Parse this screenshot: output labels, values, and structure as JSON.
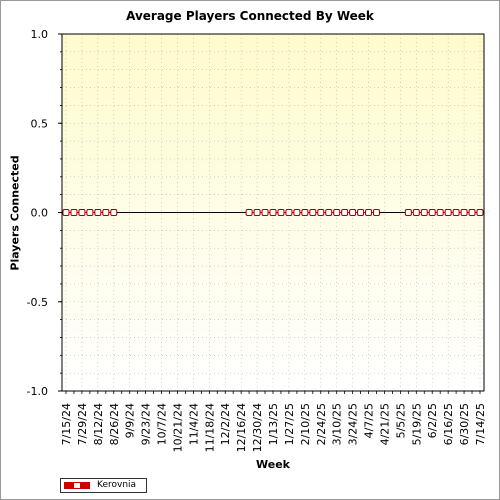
{
  "chart_data": {
    "type": "line",
    "title": "Average Players Connected By Week",
    "xlabel": "Week",
    "ylabel": "Players Connected",
    "ylim": [
      -1.0,
      1.0
    ],
    "yticks": [
      "1.0",
      "0.5",
      "0.0",
      "-0.5",
      "-1.0"
    ],
    "grid": true,
    "legend_position": "bottom-left",
    "categories": [
      "7/15/24",
      "7/22/24",
      "7/29/24",
      "8/5/24",
      "8/12/24",
      "8/19/24",
      "8/26/24",
      "9/2/24",
      "9/9/24",
      "9/16/24",
      "9/23/24",
      "9/30/24",
      "10/7/24",
      "10/14/24",
      "10/21/24",
      "10/28/24",
      "11/4/24",
      "11/11/24",
      "11/18/24",
      "11/25/24",
      "12/2/24",
      "12/9/24",
      "12/16/24",
      "12/23/24",
      "12/30/24",
      "1/6/25",
      "1/13/25",
      "1/20/25",
      "1/27/25",
      "2/3/25",
      "2/10/25",
      "2/17/25",
      "2/24/25",
      "3/3/25",
      "3/10/25",
      "3/17/25",
      "3/24/25",
      "3/31/25",
      "4/7/25",
      "4/14/25",
      "4/21/25",
      "4/28/25",
      "5/5/25",
      "5/12/25",
      "5/19/25",
      "5/26/25",
      "6/2/25",
      "6/9/25",
      "6/16/25",
      "6/23/25",
      "6/30/25",
      "7/7/25",
      "7/14/25"
    ],
    "tick_labels": [
      "7/15/24",
      "7/29/24",
      "8/12/24",
      "8/26/24",
      "9/9/24",
      "9/23/24",
      "10/7/24",
      "10/21/24",
      "11/4/24",
      "11/18/24",
      "12/2/24",
      "12/16/24",
      "12/30/24",
      "1/13/25",
      "1/27/25",
      "2/10/25",
      "2/24/25",
      "3/10/25",
      "3/24/25",
      "4/7/25",
      "4/21/25",
      "5/5/25",
      "5/19/25",
      "6/2/25",
      "6/16/25",
      "6/30/25",
      "7/14/25"
    ],
    "series": [
      {
        "name": "Kerovnia",
        "color": "#cc0000",
        "values": [
          0,
          0,
          0,
          0,
          0,
          0,
          0,
          null,
          null,
          null,
          null,
          null,
          null,
          null,
          null,
          null,
          null,
          null,
          null,
          null,
          null,
          null,
          null,
          0,
          0,
          0,
          0,
          0,
          0,
          0,
          0,
          0,
          0,
          0,
          0,
          0,
          0,
          0,
          0,
          0,
          null,
          null,
          null,
          0,
          0,
          0,
          0,
          0,
          0,
          0,
          0,
          0,
          0
        ]
      }
    ],
    "colors": {
      "background_top": "#fffbcc",
      "background_bottom": "#ffffff",
      "zero_line": "#000000",
      "marker_edge": "#990000"
    }
  }
}
